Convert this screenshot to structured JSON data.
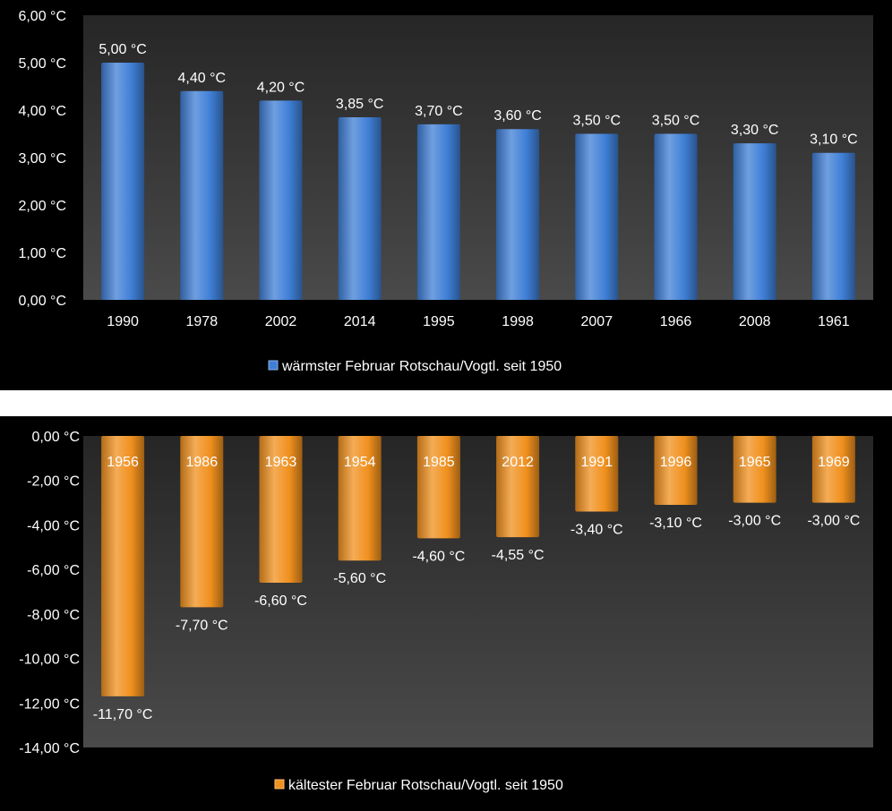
{
  "chart_data": [
    {
      "type": "bar",
      "unit": "°C",
      "categories": [
        "1990",
        "1978",
        "2002",
        "2014",
        "1995",
        "1998",
        "2007",
        "1966",
        "2008",
        "1961"
      ],
      "values": [
        5.0,
        4.4,
        4.2,
        3.85,
        3.7,
        3.6,
        3.5,
        3.5,
        3.3,
        3.1
      ],
      "value_labels": [
        "5,00 °C",
        "4,40 °C",
        "4,20 °C",
        "3,85 °C",
        "3,70 °C",
        "3,60 °C",
        "3,50 °C",
        "3,50 °C",
        "3,30 °C",
        "3,10 °C"
      ],
      "series": [
        {
          "name": "wärmster Februar  Rotschau/Vogtl. seit 1950",
          "values": [
            5.0,
            4.4,
            4.2,
            3.85,
            3.7,
            3.6,
            3.5,
            3.5,
            3.3,
            3.1
          ]
        }
      ],
      "ylim": [
        0,
        6
      ],
      "yticks": [
        0,
        1,
        2,
        3,
        4,
        5,
        6
      ],
      "ytick_labels": [
        "0,00 °C",
        "1,00 °C",
        "2,00 °C",
        "3,00 °C",
        "4,00 °C",
        "5,00 °C",
        "6,00 °C"
      ],
      "legend": "bottom",
      "color": "#3f7fd6"
    },
    {
      "type": "bar",
      "unit": "°C",
      "categories": [
        "1956",
        "1986",
        "1963",
        "1954",
        "1985",
        "2012",
        "1991",
        "1996",
        "1965",
        "1969"
      ],
      "values": [
        -11.7,
        -7.7,
        -6.6,
        -5.6,
        -4.6,
        -4.55,
        -3.4,
        -3.1,
        -3.0,
        -3.0
      ],
      "value_labels": [
        "-11,70 °C",
        "-7,70 °C",
        "-6,60 °C",
        "-5,60 °C",
        "-4,60 °C",
        "-4,55 °C",
        "-3,40 °C",
        "-3,10 °C",
        "-3,00 °C",
        "-3,00 °C"
      ],
      "series": [
        {
          "name": "kältester Februar Rotschau/Vogtl. seit 1950",
          "values": [
            -11.7,
            -7.7,
            -6.6,
            -5.6,
            -4.6,
            -4.55,
            -3.4,
            -3.1,
            -3.0,
            -3.0
          ]
        }
      ],
      "ylim": [
        -14,
        0
      ],
      "yticks": [
        0,
        -2,
        -4,
        -6,
        -8,
        -10,
        -12,
        -14
      ],
      "ytick_labels": [
        "0,00 °C",
        "-2,00 °C",
        "-4,00 °C",
        "-6,00 °C",
        "-8,00 °C",
        "-10,00 °C",
        "-12,00 °C",
        "-14,00 °C"
      ],
      "legend": "bottom",
      "color": "#f0901e"
    }
  ]
}
